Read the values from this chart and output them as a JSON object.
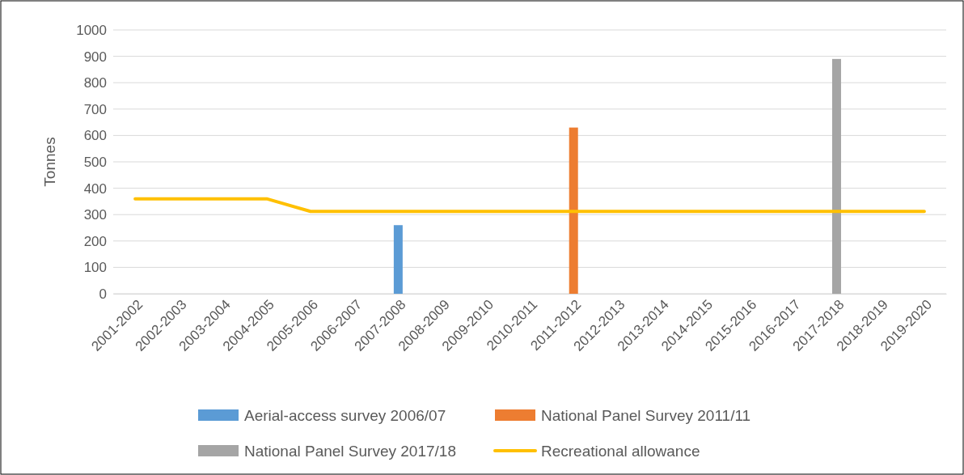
{
  "chart_data": {
    "type": "bar",
    "ylabel": "Tonnes",
    "categories": [
      "2001-2002",
      "2002-2003",
      "2003-2004",
      "2004-2005",
      "2005-2006",
      "2006-2007",
      "2007-2008",
      "2008-2009",
      "2009-2010",
      "2010-2011",
      "2011-2012",
      "2012-2013",
      "2013-2014",
      "2014-2015",
      "2015-2016",
      "2016-2017",
      "2017-2018",
      "2018-2019",
      "2019-2020"
    ],
    "ylim": [
      0,
      1000
    ],
    "yticks": [
      0,
      100,
      200,
      300,
      400,
      500,
      600,
      700,
      800,
      900,
      1000
    ],
    "grid": "y",
    "legend": "bottom",
    "series": [
      {
        "name": "Aerial-access survey 2006/07",
        "color": "#5b9bd5",
        "values": [
          null,
          null,
          null,
          null,
          null,
          null,
          260,
          null,
          null,
          null,
          null,
          null,
          null,
          null,
          null,
          null,
          null,
          null,
          null
        ]
      },
      {
        "name": "National Panel Survey 2011/11",
        "color": "#ed7d31",
        "values": [
          null,
          null,
          null,
          null,
          null,
          null,
          null,
          null,
          null,
          null,
          630,
          null,
          null,
          null,
          null,
          null,
          null,
          null,
          null
        ]
      },
      {
        "name": "National Panel Survey 2017/18",
        "color": "#a5a5a5",
        "values": [
          null,
          null,
          null,
          null,
          null,
          null,
          null,
          null,
          null,
          null,
          null,
          null,
          null,
          null,
          null,
          null,
          890,
          null,
          null
        ]
      },
      {
        "name": "Recreational allowance",
        "type": "line",
        "color": "#ffc000",
        "values": [
          360,
          360,
          360,
          360,
          312,
          312,
          312,
          312,
          312,
          312,
          312,
          312,
          312,
          312,
          312,
          312,
          312,
          312,
          312
        ]
      }
    ]
  }
}
